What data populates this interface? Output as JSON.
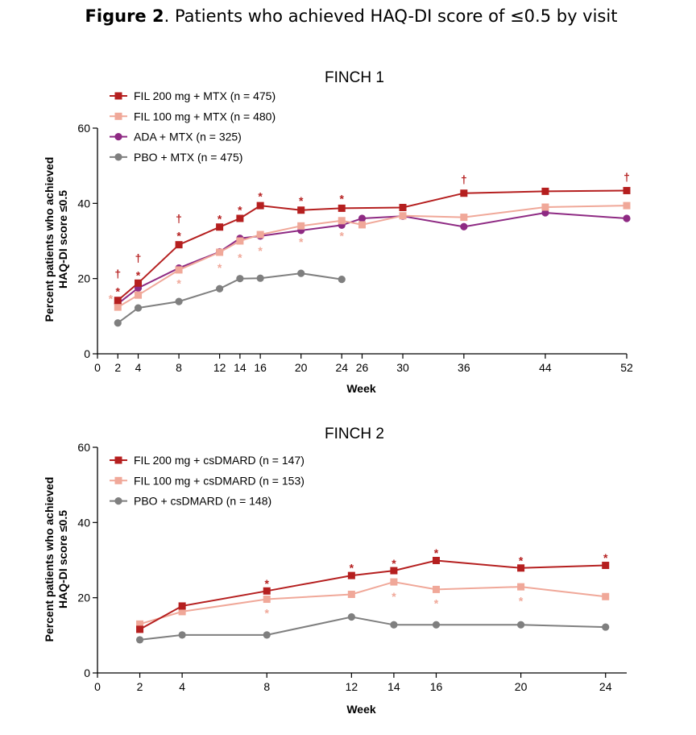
{
  "figure": {
    "label": "Figure 2",
    "caption": ". Patients who achieved HAQ-DI score of ≤0.5 by visit"
  },
  "chart_data": [
    {
      "type": "line",
      "title": "FINCH 1",
      "xlabel": "Week",
      "ylabel_line1": "Percent patients who achieved",
      "ylabel_line2": "HAQ-DI score ≤0.5",
      "xlim": [
        0,
        52
      ],
      "ylim": [
        0,
        60
      ],
      "xticks": [
        0,
        2,
        4,
        8,
        12,
        14,
        16,
        20,
        24,
        26,
        30,
        36,
        44,
        52
      ],
      "yticks": [
        0,
        20,
        40,
        60
      ],
      "series": [
        {
          "name": "FIL 200 mg + MTX (n = 475)",
          "color": "#b51f1f",
          "marker": "square",
          "x": [
            2,
            4,
            8,
            12,
            14,
            16,
            20,
            24,
            30,
            36,
            44,
            52
          ],
          "y": [
            14.2,
            18.8,
            29,
            33.7,
            36,
            39.4,
            38.2,
            38.7,
            38.9,
            42.7,
            43.2,
            43.4
          ]
        },
        {
          "name": "FIL 100 mg + MTX (n = 480)",
          "color": "#f0a899",
          "marker": "square",
          "x": [
            2,
            4,
            8,
            12,
            14,
            16,
            20,
            24,
            26,
            30,
            36,
            44,
            52
          ],
          "y": [
            12.4,
            15.6,
            22.3,
            27,
            30,
            31.7,
            34,
            35.4,
            34.3,
            36.7,
            36.3,
            39,
            39.4
          ]
        },
        {
          "name": "ADA + MTX (n = 325)",
          "color": "#8e2a83",
          "marker": "circle",
          "x": [
            2,
            4,
            8,
            12,
            14,
            16,
            20,
            24,
            26,
            30,
            36,
            44,
            52
          ],
          "y": [
            13.3,
            17.5,
            22.8,
            27.1,
            30.7,
            31.3,
            32.8,
            34.2,
            36,
            36.6,
            33.8,
            37.5,
            36
          ]
        },
        {
          "name": "PBO + MTX (n = 475)",
          "color": "#7f7f7f",
          "marker": "circle",
          "x": [
            2,
            4,
            8,
            12,
            14,
            16,
            20,
            24
          ],
          "y": [
            8.2,
            12.2,
            13.9,
            17.3,
            20,
            20.1,
            21.4,
            19.8
          ]
        }
      ],
      "annotations": [
        {
          "text": "†",
          "x": 2,
          "y": 21.3,
          "color": "#b51f1f"
        },
        {
          "text": "*",
          "x": 2,
          "y": 17.5,
          "color": "#b51f1f"
        },
        {
          "text": "*",
          "x": 1.3,
          "y": 15.5,
          "color": "#f0a899"
        },
        {
          "text": "†",
          "x": 4,
          "y": 25.5,
          "color": "#b51f1f"
        },
        {
          "text": "*",
          "x": 4,
          "y": 21.7,
          "color": "#b51f1f"
        },
        {
          "text": "†",
          "x": 8,
          "y": 36,
          "color": "#b51f1f"
        },
        {
          "text": "*",
          "x": 8,
          "y": 32.2,
          "color": "#b51f1f"
        },
        {
          "text": "*",
          "x": 8,
          "y": 19.6,
          "color": "#f0a899"
        },
        {
          "text": "*",
          "x": 12,
          "y": 36.8,
          "color": "#b51f1f"
        },
        {
          "text": "*",
          "x": 12,
          "y": 23.8,
          "color": "#f0a899"
        },
        {
          "text": "*",
          "x": 14,
          "y": 39.1,
          "color": "#b51f1f"
        },
        {
          "text": "*",
          "x": 14,
          "y": 26.5,
          "color": "#f0a899"
        },
        {
          "text": "*",
          "x": 16,
          "y": 42.7,
          "color": "#b51f1f"
        },
        {
          "text": "*",
          "x": 16,
          "y": 28.3,
          "color": "#f0a899"
        },
        {
          "text": "*",
          "x": 20,
          "y": 41.6,
          "color": "#b51f1f"
        },
        {
          "text": "*",
          "x": 20,
          "y": 30.6,
          "color": "#f0a899"
        },
        {
          "text": "*",
          "x": 24,
          "y": 42.1,
          "color": "#b51f1f"
        },
        {
          "text": "*",
          "x": 24,
          "y": 32.2,
          "color": "#f0a899"
        },
        {
          "text": "†",
          "x": 36,
          "y": 46.4,
          "color": "#b51f1f"
        },
        {
          "text": "†",
          "x": 52,
          "y": 47,
          "color": "#b51f1f"
        }
      ]
    },
    {
      "type": "line",
      "title": "FINCH 2",
      "xlabel": "Week",
      "ylabel_line1": "Percent patients who achieved",
      "ylabel_line2": "HAQ-DI score ≤0.5",
      "xlim": [
        0,
        25
      ],
      "ylim": [
        0,
        60
      ],
      "xticks": [
        0,
        2,
        4,
        8,
        12,
        14,
        16,
        20,
        24
      ],
      "yticks": [
        0,
        20,
        40,
        60
      ],
      "series": [
        {
          "name": "FIL 200 mg + csDMARD (n = 147)",
          "color": "#b51f1f",
          "marker": "square",
          "x": [
            2,
            4,
            8,
            12,
            14,
            16,
            20,
            24
          ],
          "y": [
            11.6,
            17.8,
            21.8,
            25.9,
            27.2,
            29.9,
            27.9,
            28.6
          ]
        },
        {
          "name": "FIL 100 mg + csDMARD (n = 153)",
          "color": "#f0a899",
          "marker": "square",
          "x": [
            2,
            4,
            8,
            12,
            14,
            16,
            20,
            24
          ],
          "y": [
            13,
            16.3,
            19.6,
            20.9,
            24.2,
            22.2,
            22.9,
            20.3
          ]
        },
        {
          "name": "PBO + csDMARD (n = 148)",
          "color": "#7f7f7f",
          "marker": "circle",
          "x": [
            2,
            4,
            8,
            12,
            14,
            16,
            20,
            24
          ],
          "y": [
            8.8,
            10.1,
            10.1,
            14.9,
            12.8,
            12.8,
            12.8,
            12.2
          ]
        }
      ],
      "annotations": [
        {
          "text": "*",
          "x": 8,
          "y": 24.6,
          "color": "#b51f1f"
        },
        {
          "text": "*",
          "x": 8,
          "y": 16.8,
          "color": "#f0a899"
        },
        {
          "text": "*",
          "x": 12,
          "y": 28.8,
          "color": "#b51f1f"
        },
        {
          "text": "*",
          "x": 14,
          "y": 30,
          "color": "#b51f1f"
        },
        {
          "text": "*",
          "x": 14,
          "y": 21.2,
          "color": "#f0a899"
        },
        {
          "text": "*",
          "x": 16,
          "y": 32.8,
          "color": "#b51f1f"
        },
        {
          "text": "*",
          "x": 16,
          "y": 19.4,
          "color": "#f0a899"
        },
        {
          "text": "*",
          "x": 20,
          "y": 30.7,
          "color": "#b51f1f"
        },
        {
          "text": "*",
          "x": 20,
          "y": 20,
          "color": "#f0a899"
        },
        {
          "text": "*",
          "x": 24,
          "y": 31.5,
          "color": "#b51f1f"
        }
      ]
    }
  ]
}
